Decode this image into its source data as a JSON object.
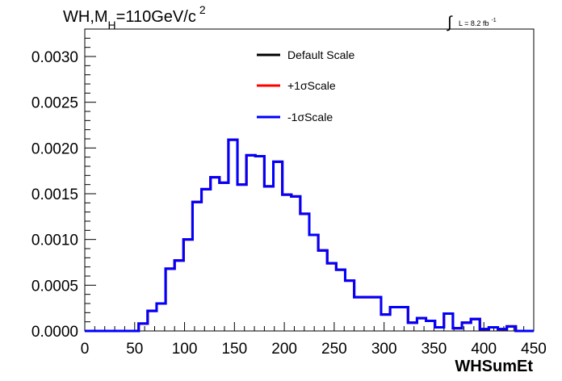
{
  "chart_data": {
    "type": "line",
    "title": {
      "prefix": "WH,M",
      "sub": "H",
      "suffix": "=110GeV/c",
      "sup": "2"
    },
    "lumi": {
      "symbol": "∫",
      "text": "L = 8.2 fb",
      "sup": "-1"
    },
    "xlabel": "WHSumEt",
    "ylabel": "",
    "xlim": [
      0,
      450
    ],
    "ylim": [
      0,
      0.0033
    ],
    "xticks": [
      {
        "v": 0,
        "label": "0"
      },
      {
        "v": 50,
        "label": "50"
      },
      {
        "v": 100,
        "label": "100"
      },
      {
        "v": 150,
        "label": "150"
      },
      {
        "v": 200,
        "label": "200"
      },
      {
        "v": 250,
        "label": "250"
      },
      {
        "v": 300,
        "label": "300"
      },
      {
        "v": 350,
        "label": "350"
      },
      {
        "v": 400,
        "label": "400"
      },
      {
        "v": 450,
        "label": "450"
      }
    ],
    "yticks": [
      {
        "v": 0,
        "label": "0.0000"
      },
      {
        "v": 0.0005,
        "label": "0.0005"
      },
      {
        "v": 0.001,
        "label": "0.0010"
      },
      {
        "v": 0.0015,
        "label": "0.0015"
      },
      {
        "v": 0.002,
        "label": "0.0020"
      },
      {
        "v": 0.0025,
        "label": "0.0025"
      },
      {
        "v": 0.003,
        "label": "0.0030"
      }
    ],
    "bin_edges": [
      0,
      9,
      18,
      27,
      36,
      45,
      54,
      63,
      72,
      81,
      90,
      99,
      108,
      117,
      126,
      135,
      144,
      153,
      162,
      171,
      180,
      189,
      198,
      207,
      216,
      225,
      234,
      243,
      252,
      261,
      270,
      279,
      288,
      297,
      306,
      315,
      324,
      333,
      342,
      351,
      360,
      369,
      378,
      387,
      396,
      405,
      414,
      423,
      432,
      441,
      450
    ],
    "series": [
      {
        "name": "Default Scale",
        "color": "#000000",
        "values": [
          0,
          0,
          0,
          0,
          0,
          0,
          8e-05,
          0.00022,
          0.0003,
          0.00068,
          0.00077,
          0.001,
          0.00141,
          0.00155,
          0.00168,
          0.00162,
          0.00209,
          0.0016,
          0.00192,
          0.00191,
          0.00158,
          0.00185,
          0.00149,
          0.00147,
          0.00128,
          0.00105,
          0.00088,
          0.00074,
          0.00067,
          0.00055,
          0.00037,
          0.00037,
          0.00037,
          0.00018,
          0.00026,
          0.00026,
          9e-05,
          0.00014,
          0.00011,
          4e-05,
          0.00019,
          3e-05,
          9e-05,
          0.00013,
          2e-05,
          4e-05,
          2e-05,
          5e-05,
          0,
          0
        ]
      },
      {
        "name": "+1σScale",
        "color": "#ff0000",
        "values": [
          0,
          0,
          0,
          0,
          0,
          0,
          8e-05,
          0.00022,
          0.0003,
          0.00068,
          0.00077,
          0.001,
          0.00141,
          0.00155,
          0.00168,
          0.00162,
          0.00209,
          0.0016,
          0.00192,
          0.00191,
          0.00158,
          0.00185,
          0.00149,
          0.00147,
          0.00128,
          0.00105,
          0.00088,
          0.00074,
          0.00067,
          0.00055,
          0.00037,
          0.00037,
          0.00037,
          0.00018,
          0.00026,
          0.00026,
          9e-05,
          0.00014,
          0.00011,
          4e-05,
          0.00019,
          3e-05,
          9e-05,
          0.00013,
          2e-05,
          4e-05,
          2e-05,
          5e-05,
          0,
          0
        ]
      },
      {
        "name": "-1σScale",
        "color": "#0000ff",
        "values": [
          0,
          0,
          0,
          0,
          0,
          0,
          8e-05,
          0.00022,
          0.0003,
          0.00068,
          0.00077,
          0.001,
          0.00141,
          0.00155,
          0.00168,
          0.00162,
          0.00209,
          0.0016,
          0.00192,
          0.00191,
          0.00158,
          0.00185,
          0.00149,
          0.00147,
          0.00128,
          0.00105,
          0.00088,
          0.00074,
          0.00067,
          0.00055,
          0.00037,
          0.00037,
          0.00037,
          0.00018,
          0.00026,
          0.00026,
          9e-05,
          0.00014,
          0.00011,
          4e-05,
          0.00019,
          3e-05,
          9e-05,
          0.00013,
          2e-05,
          4e-05,
          2e-05,
          5e-05,
          0,
          0
        ]
      }
    ],
    "legend_position": "top-center",
    "grid": false
  }
}
